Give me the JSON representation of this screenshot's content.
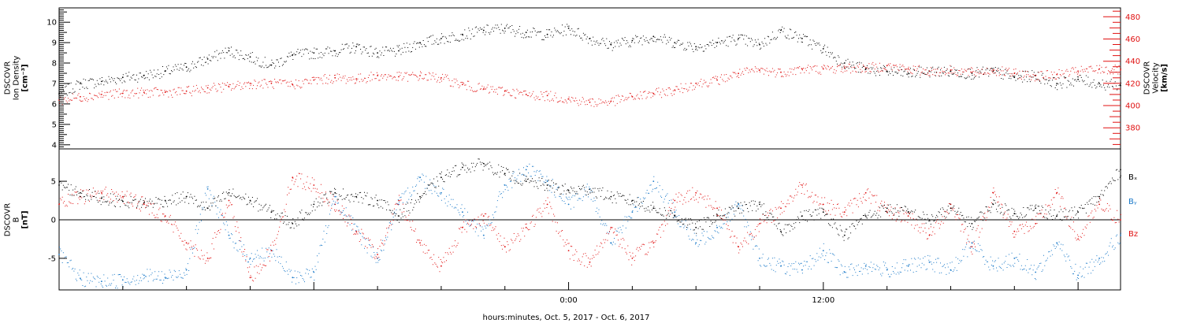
{
  "chart_data": [
    {
      "type": "scatter",
      "panel": "top",
      "ylabel_left": [
        "DSCOVR",
        "Ion Density",
        "[cm⁻³]"
      ],
      "ylabel_right": [
        "DSCOVR",
        "Velocity",
        "[km/s]"
      ],
      "ylim_left": [
        3.8,
        10.7
      ],
      "ylim_right": [
        361,
        488
      ],
      "yticks_left": [
        4,
        5,
        6,
        7,
        8,
        9,
        10
      ],
      "yticks_right": [
        380,
        400,
        420,
        440,
        460,
        480
      ],
      "grid": false,
      "series": [
        {
          "color": "#000000",
          "axis": "left",
          "x": [
            -24,
            -23,
            -22,
            -21,
            -20,
            -19,
            -18,
            -17,
            -16,
            -15,
            -14,
            -13,
            -12,
            -11,
            -10,
            -9,
            -8,
            -7,
            -6,
            -5,
            -4,
            -3,
            -2,
            -1,
            0,
            1,
            2,
            3,
            4,
            5,
            6,
            7,
            8,
            9,
            10,
            11,
            12,
            13,
            14,
            15,
            16,
            17,
            18,
            19,
            20,
            21,
            22,
            23,
            24,
            25,
            26
          ],
          "y": [
            6.5,
            7.0,
            7.1,
            7.3,
            7.4,
            7.6,
            7.8,
            8.2,
            8.6,
            8.3,
            7.9,
            8.4,
            8.5,
            8.6,
            8.8,
            8.5,
            8.6,
            9.0,
            9.2,
            9.4,
            9.6,
            9.7,
            9.5,
            9.4,
            9.7,
            9.2,
            8.9,
            9.1,
            9.3,
            9.0,
            8.8,
            9.0,
            9.2,
            8.9,
            9.6,
            9.2,
            8.7,
            8.0,
            7.7,
            7.6,
            7.5,
            7.6,
            7.6,
            7.5,
            7.6,
            7.3,
            7.4,
            7.0,
            7.2,
            7.0,
            6.9
          ]
        },
        {
          "color": "#e01010",
          "axis": "right",
          "x": [
            -24,
            -23,
            -22,
            -21,
            -20,
            -19,
            -18,
            -17,
            -16,
            -15,
            -14,
            -13,
            -12,
            -11,
            -10,
            -9,
            -8,
            -7,
            -6,
            -5,
            -4,
            -3,
            -2,
            -1,
            0,
            1,
            2,
            3,
            4,
            5,
            6,
            7,
            8,
            9,
            10,
            11,
            12,
            13,
            14,
            15,
            16,
            17,
            18,
            19,
            20,
            21,
            22,
            23,
            24,
            25,
            26
          ],
          "y": [
            405,
            408,
            410,
            411,
            412,
            412,
            413,
            416,
            417,
            420,
            420,
            419,
            423,
            425,
            424,
            427,
            426,
            427,
            425,
            419,
            415,
            413,
            410,
            409,
            406,
            403,
            404,
            408,
            411,
            414,
            420,
            423,
            429,
            432,
            430,
            433,
            433,
            434,
            434,
            436,
            433,
            431,
            432,
            430,
            432,
            429,
            427,
            428,
            431,
            433,
            432
          ]
        }
      ]
    },
    {
      "type": "scatter",
      "panel": "bottom",
      "ylabel_left": [
        "DSCOVR",
        "B",
        "[nT]"
      ],
      "ylim": [
        -9.1,
        9.2
      ],
      "yticks": [
        -5,
        0,
        5
      ],
      "zero_line": true,
      "grid": false,
      "xtick_labels": [
        "0:00",
        "12:00"
      ],
      "xlabel": "hours:minutes, Oct. 5, 2017 - Oct. 6, 2017",
      "legend": [
        "Bₓ",
        "Bᵧ",
        "Bz"
      ],
      "legend_position": "right",
      "series": [
        {
          "name": "Bₓ",
          "color": "#000000",
          "x": [
            -24,
            -23,
            -22,
            -21,
            -20,
            -19,
            -18,
            -17,
            -16,
            -15,
            -14,
            -13,
            -12,
            -11,
            -10,
            -9,
            -8,
            -7,
            -6,
            -5,
            -4,
            -3,
            -2,
            -1,
            0,
            1,
            2,
            3,
            4,
            5,
            6,
            7,
            8,
            9,
            10,
            11,
            12,
            13,
            14,
            15,
            16,
            17,
            18,
            19,
            20,
            21,
            22,
            23,
            24,
            25,
            26
          ],
          "y": [
            4.5,
            3.5,
            2.8,
            2.4,
            2.2,
            2.5,
            3.0,
            1.5,
            3.5,
            2.5,
            1.0,
            -0.5,
            2.0,
            3.5,
            3.0,
            2.5,
            0.5,
            3.0,
            5.5,
            6.8,
            7.3,
            6.0,
            5.0,
            4.5,
            3.8,
            4.0,
            3.0,
            2.5,
            1.5,
            0.5,
            -1.0,
            0.5,
            1.5,
            2.0,
            -1.5,
            0.5,
            1.0,
            -2.0,
            0.5,
            1.5,
            1.0,
            0.0,
            1.5,
            -0.5,
            2.0,
            0.8,
            1.5,
            0.5,
            1.0,
            3.0,
            6.5
          ]
        },
        {
          "name": "Bᵧ",
          "color": "#1878c8",
          "x": [
            -24,
            -23,
            -22,
            -21,
            -20,
            -19,
            -18,
            -17,
            -16,
            -15,
            -14,
            -13,
            -12,
            -11,
            -10,
            -9,
            -8,
            -7,
            -6,
            -5,
            -4,
            -3,
            -2,
            -1,
            0,
            1,
            2,
            3,
            4,
            5,
            6,
            7,
            8,
            9,
            10,
            11,
            12,
            13,
            14,
            15,
            16,
            17,
            18,
            19,
            20,
            21,
            22,
            23,
            24,
            25,
            26
          ],
          "y": [
            -4.5,
            -7.6,
            -8.0,
            -7.8,
            -7.2,
            -7.5,
            -6.5,
            4.0,
            -2.0,
            -5.0,
            -4.0,
            -7.5,
            -6.8,
            3.0,
            -1.5,
            -5.0,
            2.0,
            5.5,
            3.5,
            1.0,
            -2.0,
            4.5,
            6.5,
            5.0,
            2.0,
            4.0,
            -3.0,
            1.0,
            5.0,
            1.0,
            -3.0,
            -1.0,
            2.0,
            -5.0,
            -6.0,
            -6.5,
            -4.0,
            -6.8,
            -6.0,
            -6.5,
            -6.0,
            -5.5,
            -6.5,
            -3.0,
            -6.0,
            -5.0,
            -6.8,
            -3.0,
            -7.2,
            -5.0,
            -2.0
          ]
        },
        {
          "name": "Bz",
          "color": "#e01010",
          "x": [
            -24,
            -23,
            -22,
            -21,
            -20,
            -19,
            -18,
            -17,
            -16,
            -15,
            -14,
            -13,
            -12,
            -11,
            -10,
            -9,
            -8,
            -7,
            -6,
            -5,
            -4,
            -3,
            -2,
            -1,
            0,
            1,
            2,
            3,
            4,
            5,
            6,
            7,
            8,
            9,
            10,
            11,
            12,
            13,
            14,
            15,
            16,
            17,
            18,
            19,
            20,
            21,
            22,
            23,
            24,
            25,
            26
          ],
          "y": [
            2.0,
            3.0,
            3.5,
            3.0,
            2.0,
            0.5,
            -3.0,
            -5.0,
            2.5,
            -7.5,
            -4.0,
            5.5,
            4.5,
            2.0,
            -1.5,
            -4.5,
            2.5,
            -3.0,
            -6.0,
            -1.0,
            0.5,
            -3.5,
            -1.0,
            2.0,
            -4.0,
            -5.5,
            -1.0,
            -5.0,
            -3.0,
            2.5,
            3.5,
            1.5,
            -3.5,
            -0.5,
            1.5,
            4.5,
            2.0,
            1.0,
            3.5,
            1.0,
            0.5,
            -2.0,
            2.0,
            -3.5,
            3.5,
            -1.5,
            -0.5,
            3.5,
            -2.5,
            2.0,
            0.0
          ]
        }
      ]
    }
  ]
}
